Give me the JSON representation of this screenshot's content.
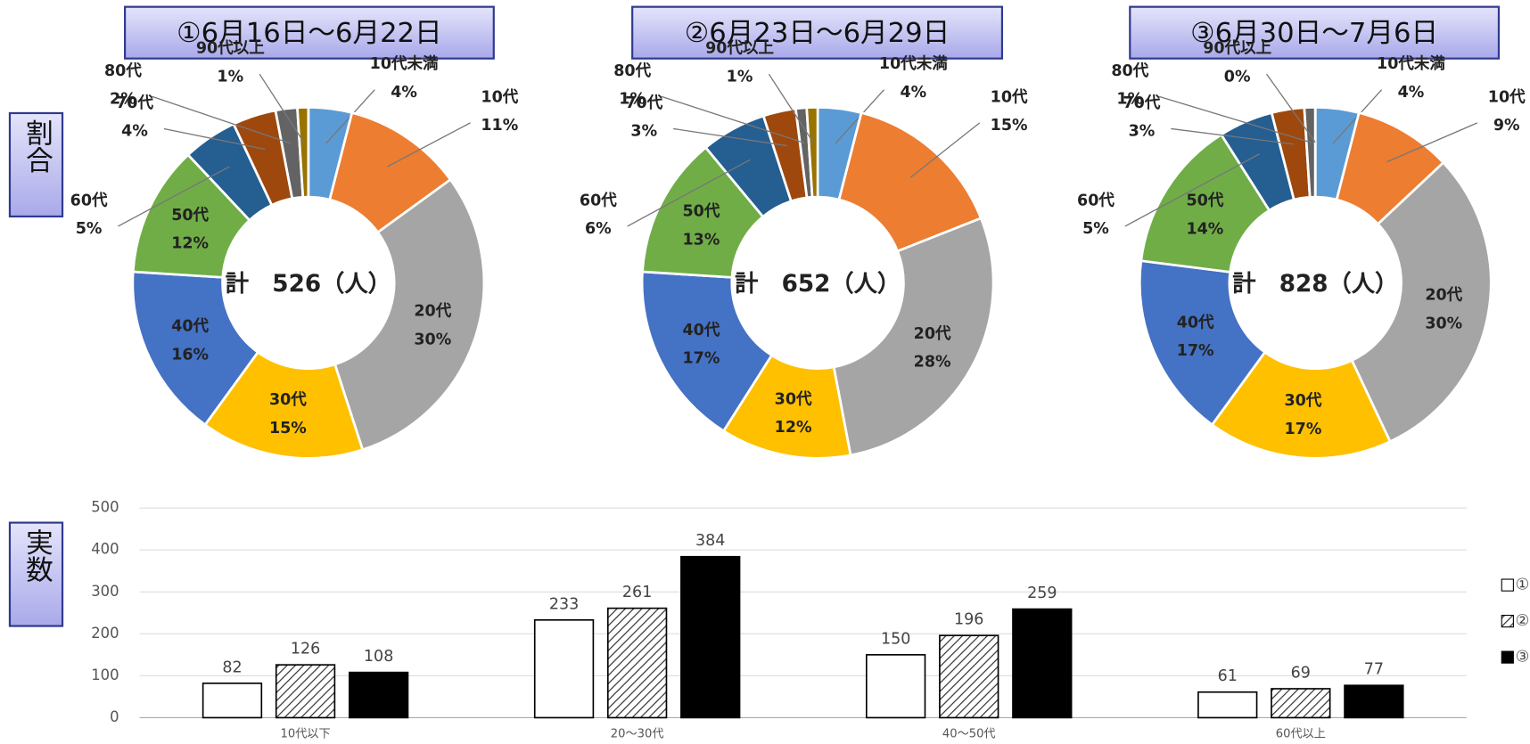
{
  "labels": {
    "ratio": "割合",
    "count": "実数"
  },
  "chart_data": [
    {
      "type": "pie",
      "title": "①6月16日～6月22日",
      "center_label": "計　526（人）",
      "categories": [
        "10代未満",
        "10代",
        "20代",
        "30代",
        "40代",
        "50代",
        "60代",
        "70代",
        "80代",
        "90代以上"
      ],
      "values": [
        4,
        11,
        30,
        15,
        16,
        12,
        5,
        4,
        2,
        1
      ],
      "value_labels": [
        "4%",
        "11%",
        "30%",
        "15%",
        "16%",
        "12%",
        "5%",
        "4%",
        "2%",
        "1%"
      ],
      "colors": [
        "#5b9bd5",
        "#ed7d31",
        "#a5a5a5",
        "#ffc000",
        "#4472c4",
        "#70ad47",
        "#255e91",
        "#9e480e",
        "#636363",
        "#997300"
      ]
    },
    {
      "type": "pie",
      "title": "②6月23日～6月29日",
      "center_label": "計　652（人）",
      "categories": [
        "10代未満",
        "10代",
        "20代",
        "30代",
        "40代",
        "50代",
        "60代",
        "70代",
        "80代",
        "90代以上"
      ],
      "values": [
        4,
        15,
        28,
        12,
        17,
        13,
        6,
        3,
        1,
        1
      ],
      "value_labels": [
        "4%",
        "15%",
        "28%",
        "12%",
        "17%",
        "13%",
        "6%",
        "3%",
        "1%",
        "1%"
      ],
      "colors": [
        "#5b9bd5",
        "#ed7d31",
        "#a5a5a5",
        "#ffc000",
        "#4472c4",
        "#70ad47",
        "#255e91",
        "#9e480e",
        "#636363",
        "#997300"
      ]
    },
    {
      "type": "pie",
      "title": "③6月30日～7月6日",
      "center_label": "計　828（人）",
      "categories": [
        "10代未満",
        "10代",
        "20代",
        "30代",
        "40代",
        "50代",
        "60代",
        "70代",
        "80代",
        "90代以上"
      ],
      "values": [
        4,
        9,
        30,
        17,
        17,
        14,
        5,
        3,
        1,
        0
      ],
      "value_labels": [
        "4%",
        "9%",
        "30%",
        "17%",
        "17%",
        "14%",
        "5%",
        "3%",
        "1%",
        "0%"
      ],
      "colors": [
        "#5b9bd5",
        "#ed7d31",
        "#a5a5a5",
        "#ffc000",
        "#4472c4",
        "#70ad47",
        "#255e91",
        "#9e480e",
        "#636363",
        "#997300"
      ]
    },
    {
      "type": "bar",
      "categories": [
        "10代以下",
        "20～30代",
        "40～50代",
        "60代以上"
      ],
      "series": [
        {
          "name": "①",
          "color": "#ffffff",
          "pattern": "none",
          "values": [
            82,
            233,
            150,
            61
          ]
        },
        {
          "name": "②",
          "color": "#ffffff",
          "pattern": "hatch",
          "values": [
            126,
            261,
            196,
            69
          ]
        },
        {
          "name": "③",
          "color": "#000000",
          "pattern": "none",
          "values": [
            108,
            384,
            259,
            77
          ]
        }
      ],
      "ylim": [
        0,
        500
      ],
      "yticks": [
        0,
        100,
        200,
        300,
        400,
        500
      ],
      "grid": true
    }
  ]
}
